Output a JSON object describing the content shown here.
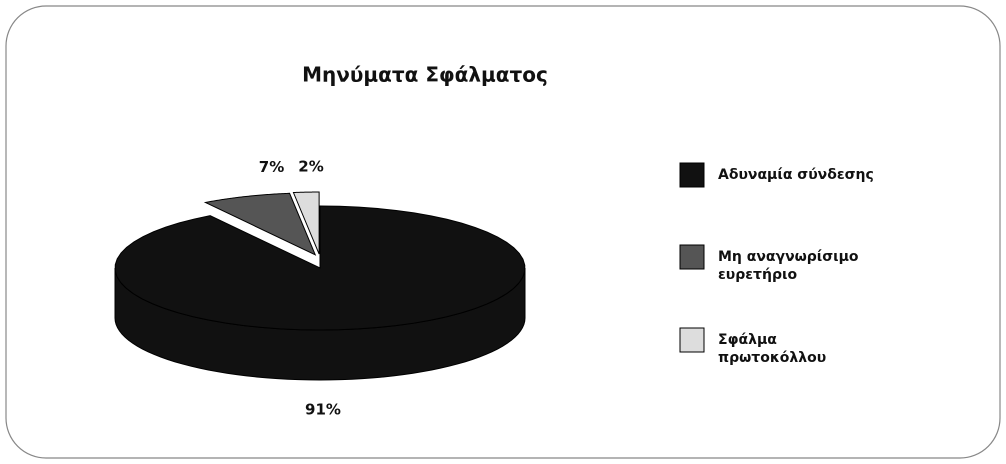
{
  "chart_data": {
    "type": "pie",
    "title": "Μηνύματα Σφάλματος",
    "categories": [
      "Αδυναμία σύνδεσης",
      "Μη αναγνωρίσιμο ευρετήριο",
      "Σφάλμα πρωτοκόλλου"
    ],
    "values": [
      91,
      7,
      2
    ],
    "value_labels": [
      "91%",
      "7%",
      "2%"
    ],
    "colors": [
      "#111111",
      "#555555",
      "#dddddd"
    ]
  }
}
